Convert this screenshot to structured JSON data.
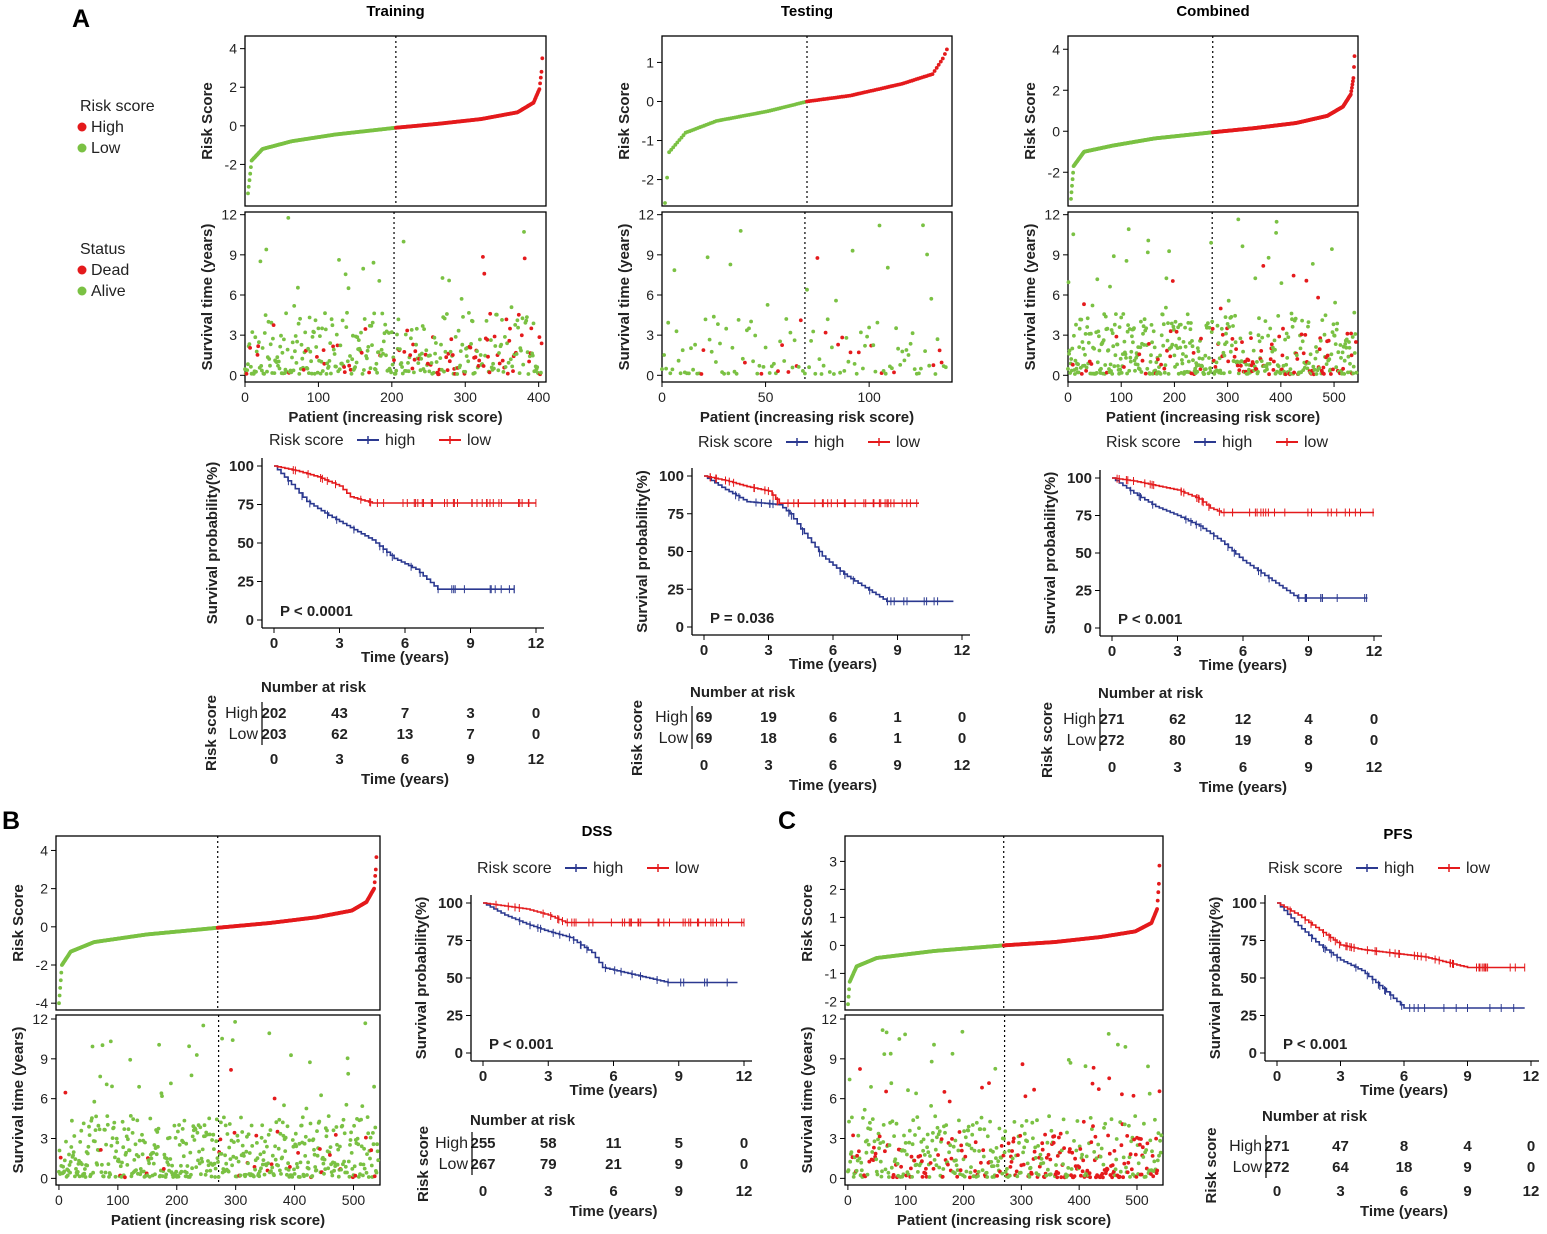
{
  "panel_letters": [
    "A",
    "B",
    "C"
  ],
  "legends": {
    "risk": {
      "title": "Risk score",
      "items": [
        "High",
        "Low"
      ]
    },
    "status": {
      "title": "Status",
      "items": [
        "Dead",
        "Alive"
      ]
    }
  },
  "colors": {
    "high_red": "#e41a1c",
    "low_green": "#7ac143",
    "km_high": "#2b3990",
    "km_low": "#e41a1c"
  },
  "chart_data": [
    {
      "type": "scatter",
      "role": "risk_curve",
      "cohort": "Training",
      "title": "Training",
      "ylabel": "Risk Score",
      "xlabel": "",
      "n": 405,
      "cutoff_index": 203,
      "ylim": [
        -4.0,
        4.5
      ],
      "yticks": [
        4,
        2,
        0,
        -2
      ],
      "anchor_x": [
        0,
        5,
        20,
        60,
        120,
        203,
        260,
        320,
        370,
        392,
        400,
        403,
        405
      ],
      "anchor_y": [
        -3.5,
        -1.8,
        -1.2,
        -0.8,
        -0.45,
        -0.1,
        0.1,
        0.35,
        0.7,
        1.2,
        1.9,
        2.8,
        4.2
      ]
    },
    {
      "type": "scatter",
      "role": "survival_status",
      "cohort": "Training",
      "title": "",
      "xlabel": "Patient (increasing risk score)",
      "ylabel": "Survival time (years)",
      "n": 405,
      "cutoff_index": 203,
      "xlim": [
        0,
        410
      ],
      "ylim": [
        -0.5,
        12.2
      ],
      "xticks": [
        0,
        100,
        200,
        300,
        400
      ],
      "yticks": [
        0,
        3,
        6,
        9,
        12
      ],
      "dead_rate_low": 0.12,
      "dead_rate_high": 0.35,
      "seed": 11
    },
    {
      "type": "line",
      "role": "kaplan_meier",
      "cohort": "Training",
      "legend_title": "Risk score",
      "legend": [
        "high",
        "low"
      ],
      "xlabel": "Time (years)",
      "ylabel": "Survival probability(%)",
      "xlim": [
        0,
        12
      ],
      "ylim": [
        0,
        100
      ],
      "xticks": [
        0,
        3,
        6,
        9,
        12
      ],
      "yticks": [
        0,
        25,
        50,
        75,
        100
      ],
      "pvalue": "P < 0.0001",
      "series": [
        {
          "name": "high",
          "t": [
            0,
            0.8,
            1.5,
            2.5,
            3.5,
            4.5,
            5.5,
            6.5,
            7.5,
            11
          ],
          "s": [
            100,
            88,
            77,
            68,
            60,
            52,
            40,
            33,
            20,
            20
          ]
        },
        {
          "name": "low",
          "t": [
            0,
            1,
            2,
            3,
            3.5,
            4.5,
            12
          ],
          "s": [
            100,
            97,
            93,
            87,
            80,
            76,
            76
          ]
        }
      ],
      "risk_table": {
        "title": "Number at risk",
        "row_label": "Risk score",
        "rows": [
          {
            "label": "High",
            "values": [
              202,
              43,
              7,
              3,
              0
            ]
          },
          {
            "label": "Low",
            "values": [
              203,
              62,
              13,
              7,
              0
            ]
          }
        ],
        "times": [
          0,
          3,
          6,
          9,
          12
        ],
        "xlabel": "Time (years)"
      }
    },
    {
      "type": "scatter",
      "role": "risk_curve",
      "cohort": "Testing",
      "title": "Testing",
      "ylabel": "Risk Score",
      "xlabel": "",
      "n": 138,
      "cutoff_index": 69,
      "ylim": [
        -2.6,
        1.6
      ],
      "yticks": [
        1,
        0,
        -1,
        -2
      ],
      "anchor_x": [
        0,
        2,
        10,
        25,
        50,
        69,
        90,
        115,
        130,
        135,
        138
      ],
      "anchor_y": [
        -2.6,
        -1.3,
        -0.8,
        -0.5,
        -0.25,
        0.0,
        0.15,
        0.45,
        0.7,
        1.1,
        1.45
      ]
    },
    {
      "type": "scatter",
      "role": "survival_status",
      "cohort": "Testing",
      "title": "",
      "xlabel": "Patient (increasing risk score)",
      "ylabel": "Survival time (years)",
      "n": 138,
      "cutoff_index": 69,
      "xlim": [
        0,
        140
      ],
      "ylim": [
        -0.5,
        12.2
      ],
      "xticks": [
        0,
        50,
        100
      ],
      "yticks": [
        0,
        3,
        6,
        9,
        12
      ],
      "dead_rate_low": 0.08,
      "dead_rate_high": 0.15,
      "seed": 23
    },
    {
      "type": "line",
      "role": "kaplan_meier",
      "cohort": "Testing",
      "legend_title": "Risk score",
      "legend": [
        "high",
        "low"
      ],
      "xlabel": "Time (years)",
      "ylabel": "Survival probability(%)",
      "xlim": [
        0,
        12
      ],
      "ylim": [
        0,
        100
      ],
      "xticks": [
        0,
        3,
        6,
        9,
        12
      ],
      "yticks": [
        0,
        25,
        50,
        75,
        100
      ],
      "pvalue": "P = 0.036",
      "series": [
        {
          "name": "high",
          "t": [
            0,
            1,
            2,
            3.5,
            4,
            4.5,
            5.5,
            6.5,
            8.5,
            11.6
          ],
          "s": [
            100,
            91,
            83,
            81,
            75,
            65,
            47,
            35,
            17,
            17
          ]
        },
        {
          "name": "low",
          "t": [
            0,
            1,
            2,
            3,
            3.5,
            10
          ],
          "s": [
            100,
            97,
            93,
            90,
            82,
            82
          ]
        }
      ],
      "risk_table": {
        "title": "Number at risk",
        "row_label": "Risk score",
        "rows": [
          {
            "label": "High",
            "values": [
              69,
              19,
              6,
              1,
              0
            ]
          },
          {
            "label": "Low",
            "values": [
              69,
              18,
              6,
              1,
              0
            ]
          }
        ],
        "times": [
          0,
          3,
          6,
          9,
          12
        ],
        "xlabel": "Time (years)"
      }
    },
    {
      "type": "scatter",
      "role": "risk_curve",
      "cohort": "Combined",
      "title": "Combined",
      "ylabel": "Risk Score",
      "xlabel": "",
      "n": 543,
      "cutoff_index": 271,
      "ylim": [
        -3.5,
        4.5
      ],
      "yticks": [
        4,
        2,
        0,
        -2
      ],
      "anchor_x": [
        0,
        5,
        25,
        80,
        160,
        271,
        350,
        430,
        490,
        520,
        535,
        540,
        543
      ],
      "anchor_y": [
        -3.3,
        -1.7,
        -1.0,
        -0.7,
        -0.35,
        -0.05,
        0.15,
        0.4,
        0.75,
        1.2,
        1.8,
        2.6,
        4.2
      ]
    },
    {
      "type": "scatter",
      "role": "survival_status",
      "cohort": "Combined",
      "title": "",
      "xlabel": "Patient (increasing risk score)",
      "ylabel": "Survival time (years)",
      "n": 543,
      "cutoff_index": 271,
      "xlim": [
        0,
        545
      ],
      "ylim": [
        -0.5,
        12.2
      ],
      "xticks": [
        0,
        100,
        200,
        300,
        400,
        500
      ],
      "yticks": [
        0,
        3,
        6,
        9,
        12
      ],
      "dead_rate_low": 0.1,
      "dead_rate_high": 0.3,
      "seed": 37
    },
    {
      "type": "line",
      "role": "kaplan_meier",
      "cohort": "Combined",
      "legend_title": "Risk score",
      "legend": [
        "high",
        "low"
      ],
      "xlabel": "Time (years)",
      "ylabel": "Survival probability(%)",
      "xlim": [
        0,
        12
      ],
      "ylim": [
        0,
        100
      ],
      "xticks": [
        0,
        3,
        6,
        9,
        12
      ],
      "yticks": [
        0,
        25,
        50,
        75,
        100
      ],
      "pvalue": "P < 0.001",
      "series": [
        {
          "name": "high",
          "t": [
            0,
            1,
            2,
            3,
            4,
            5,
            6,
            7,
            8.5,
            11.7
          ],
          "s": [
            100,
            90,
            81,
            75,
            68,
            58,
            45,
            35,
            20,
            20
          ]
        },
        {
          "name": "low",
          "t": [
            0,
            1,
            2,
            3,
            4,
            4.5,
            5,
            12
          ],
          "s": [
            100,
            98,
            95,
            92,
            86,
            80,
            77,
            77
          ]
        }
      ],
      "risk_table": {
        "title": "Number at risk",
        "row_label": "Risk score",
        "rows": [
          {
            "label": "High",
            "values": [
              271,
              62,
              12,
              4,
              0
            ]
          },
          {
            "label": "Low",
            "values": [
              272,
              80,
              19,
              8,
              0
            ]
          }
        ],
        "times": [
          0,
          3,
          6,
          9,
          12
        ],
        "xlabel": "Time (years)"
      }
    },
    {
      "type": "scatter",
      "role": "risk_curve",
      "cohort": "B",
      "title": "",
      "ylabel": "Risk Score",
      "xlabel": "",
      "n": 543,
      "cutoff_index": 271,
      "ylim": [
        -4.2,
        4.6
      ],
      "yticks": [
        4,
        2,
        0,
        -2,
        -4
      ],
      "anchor_x": [
        0,
        5,
        20,
        60,
        150,
        271,
        360,
        440,
        500,
        525,
        538,
        541,
        543
      ],
      "anchor_y": [
        -4.0,
        -2.0,
        -1.3,
        -0.8,
        -0.4,
        -0.05,
        0.2,
        0.5,
        0.85,
        1.3,
        2.0,
        3.0,
        4.3
      ]
    },
    {
      "type": "scatter",
      "role": "survival_status",
      "cohort": "B",
      "title": "",
      "xlabel": "Patient (increasing risk score)",
      "ylabel": "Survival time (years)",
      "n": 543,
      "cutoff_index": 271,
      "xlim": [
        -5,
        545
      ],
      "ylim": [
        -0.5,
        12.3
      ],
      "xticks": [
        0,
        100,
        200,
        300,
        400,
        500
      ],
      "yticks": [
        0,
        3,
        6,
        9,
        12
      ],
      "dead_rate_low": 0.04,
      "dead_rate_high": 0.14,
      "seed": 53
    },
    {
      "type": "line",
      "role": "kaplan_meier",
      "cohort": "DSS",
      "title": "DSS",
      "legend_title": "Risk score",
      "legend": [
        "high",
        "low"
      ],
      "xlabel": "Time (years)",
      "ylabel": "Survival probability(%)",
      "xlim": [
        0,
        12
      ],
      "ylim": [
        0,
        100
      ],
      "xticks": [
        0,
        3,
        6,
        9,
        12
      ],
      "yticks": [
        0,
        25,
        50,
        75,
        100
      ],
      "pvalue": "P < 0.001",
      "series": [
        {
          "name": "high",
          "t": [
            0,
            1,
            2,
            3,
            4,
            5,
            5.5,
            8.5,
            11.7
          ],
          "s": [
            100,
            92,
            86,
            81,
            77,
            67,
            57,
            47,
            47
          ]
        },
        {
          "name": "low",
          "t": [
            0,
            1,
            2,
            3,
            3.8,
            12
          ],
          "s": [
            100,
            98,
            96,
            92,
            87,
            87
          ]
        }
      ],
      "risk_table": {
        "title": "Number at risk",
        "row_label": "Risk score",
        "rows": [
          {
            "label": "High",
            "values": [
              255,
              58,
              11,
              5,
              0
            ]
          },
          {
            "label": "Low",
            "values": [
              267,
              79,
              21,
              9,
              0
            ]
          }
        ],
        "times": [
          0,
          3,
          6,
          9,
          12
        ],
        "xlabel": "Time (years)"
      }
    },
    {
      "type": "scatter",
      "role": "risk_curve",
      "cohort": "C",
      "title": "",
      "ylabel": "Risk Score",
      "xlabel": "",
      "n": 543,
      "cutoff_index": 271,
      "ylim": [
        -2.2,
        3.8
      ],
      "yticks": [
        3,
        2,
        1,
        0,
        -1,
        -2
      ],
      "anchor_x": [
        0,
        3,
        15,
        50,
        150,
        271,
        360,
        440,
        500,
        528,
        538,
        541,
        543
      ],
      "anchor_y": [
        -2.1,
        -1.3,
        -0.75,
        -0.45,
        -0.2,
        0.0,
        0.12,
        0.3,
        0.5,
        0.8,
        1.3,
        2.2,
        3.5
      ]
    },
    {
      "type": "scatter",
      "role": "survival_status",
      "cohort": "C",
      "title": "",
      "xlabel": "Patient (increasing risk score)",
      "ylabel": "Survival time (years)",
      "n": 543,
      "cutoff_index": 271,
      "xlim": [
        -5,
        545
      ],
      "ylim": [
        -0.5,
        12.3
      ],
      "xticks": [
        0,
        100,
        200,
        300,
        400,
        500
      ],
      "yticks": [
        0,
        3,
        6,
        9,
        12
      ],
      "dead_rate_low": 0.28,
      "dead_rate_high": 0.5,
      "seed": 71
    },
    {
      "type": "line",
      "role": "kaplan_meier",
      "cohort": "PFS",
      "title": "PFS",
      "legend_title": "Risk score",
      "legend": [
        "high",
        "low"
      ],
      "xlabel": "Time (years)",
      "ylabel": "Survival probability(%)",
      "xlim": [
        0,
        12
      ],
      "ylim": [
        0,
        100
      ],
      "xticks": [
        0,
        3,
        6,
        9,
        12
      ],
      "yticks": [
        0,
        25,
        50,
        75,
        100
      ],
      "pvalue": "P < 0.001",
      "series": [
        {
          "name": "high",
          "t": [
            0,
            1,
            2,
            3,
            4,
            5,
            6,
            11.7
          ],
          "s": [
            100,
            85,
            72,
            62,
            55,
            43,
            30,
            30
          ]
        },
        {
          "name": "low",
          "t": [
            0,
            1,
            2,
            3,
            4,
            7,
            9,
            11.7
          ],
          "s": [
            100,
            92,
            82,
            72,
            69,
            64,
            57,
            57
          ]
        }
      ],
      "risk_table": {
        "title": "Number at risk",
        "row_label": "Risk score",
        "rows": [
          {
            "label": "High",
            "values": [
              271,
              47,
              8,
              4,
              0
            ]
          },
          {
            "label": "Low",
            "values": [
              272,
              64,
              18,
              9,
              0
            ]
          }
        ],
        "times": [
          0,
          3,
          6,
          9,
          12
        ],
        "xlabel": "Time (years)"
      }
    }
  ]
}
